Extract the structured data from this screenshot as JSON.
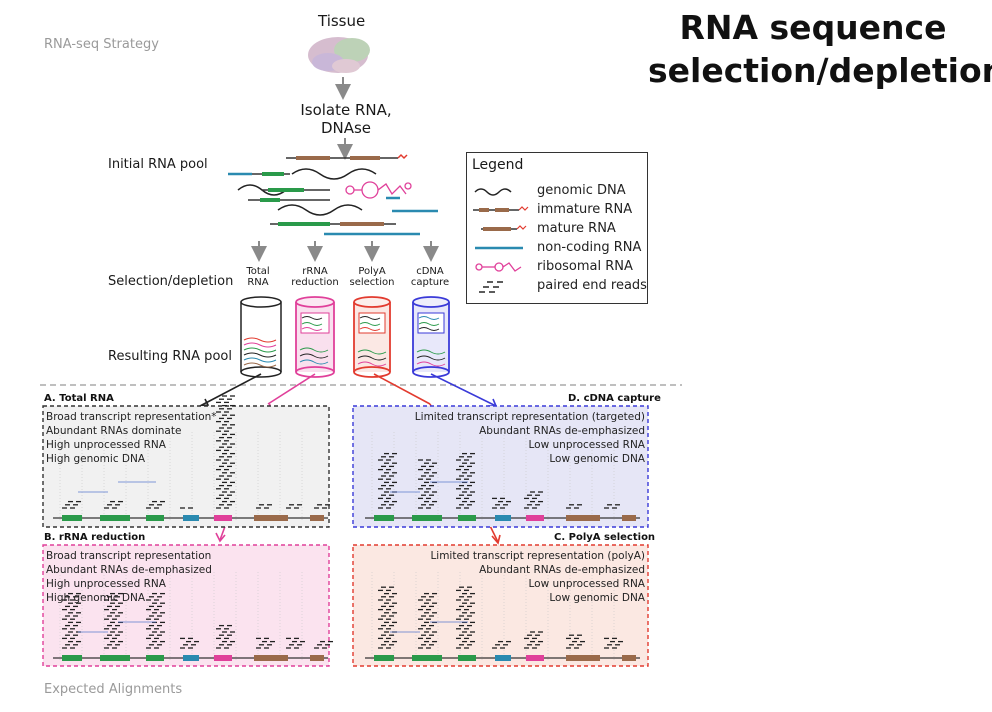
{
  "title": "RNA sequence selection/depletion",
  "title_line1": "RNA sequence",
  "title_line2": "selection/depletion",
  "strategy_label": "RNA-seq Strategy",
  "expected_label": "Expected Alignments",
  "top_labels": {
    "tissue": "Tissue",
    "isolate_line1": "Isolate RNA,",
    "isolate_line2": "DNAse"
  },
  "row_labels": {
    "initial_pool": "Initial RNA pool",
    "selection": "Selection/depletion",
    "resulting_pool": "Resulting RNA pool"
  },
  "methods": [
    {
      "line1": "Total",
      "line2": "RNA",
      "color": "#222222"
    },
    {
      "line1": "rRNA",
      "line2": "reduction",
      "color": "#e0409a"
    },
    {
      "line1": "PolyA",
      "line2": "selection",
      "color": "#e23b2f"
    },
    {
      "line1": "cDNA",
      "line2": "capture",
      "color": "#3a3ad8"
    }
  ],
  "legend": {
    "title": "Legend",
    "items": [
      {
        "label": "genomic DNA",
        "icon": "wavy-line-icon"
      },
      {
        "label": "immature RNA",
        "icon": "immature-rna-icon"
      },
      {
        "label": "mature RNA",
        "icon": "mature-rna-icon"
      },
      {
        "label": "non-coding RNA",
        "icon": "ncrna-line-icon"
      },
      {
        "label": "ribosomal RNA",
        "icon": "ribosomal-rna-icon"
      },
      {
        "label": "paired end reads",
        "icon": "paired-reads-icon"
      }
    ]
  },
  "panels": {
    "A": {
      "title": "A. Total RNA",
      "lines": [
        "Broad transcript representation*",
        "Abundant RNAs dominate",
        "High unprocessed RNA",
        "High genomic DNA"
      ],
      "border": "#333333",
      "fill": "#f1f1f1"
    },
    "B": {
      "title": "B. rRNA reduction",
      "lines": [
        "Broad transcript representation",
        "Abundant RNAs de-emphasized",
        "High unprocessed RNA",
        "High genomic DNA"
      ],
      "border": "#e0409a",
      "fill": "#fbe3ef"
    },
    "C": {
      "title": "C. PolyA selection",
      "lines": [
        "Limited transcript representation (polyA)",
        "Abundant RNAs de-emphasized",
        "Low unprocessed RNA",
        "Low genomic DNA"
      ],
      "border": "#e23b2f",
      "fill": "#fbe8e2"
    },
    "D": {
      "title": "D. cDNA capture",
      "lines": [
        "Limited transcript representation (targeted)",
        "Abundant RNAs de-emphasized",
        "Low unprocessed RNA",
        "Low genomic DNA"
      ],
      "border": "#3a3ad8",
      "fill": "#e6e6f6"
    }
  },
  "colors": {
    "mature_rna": "#2a9a4a",
    "immature_rna": "#9a6a4a",
    "noncoding_rna": "#2a8ab0",
    "ribosomal_rna": "#e0409a",
    "arrow_gray": "#8a8a8a"
  }
}
